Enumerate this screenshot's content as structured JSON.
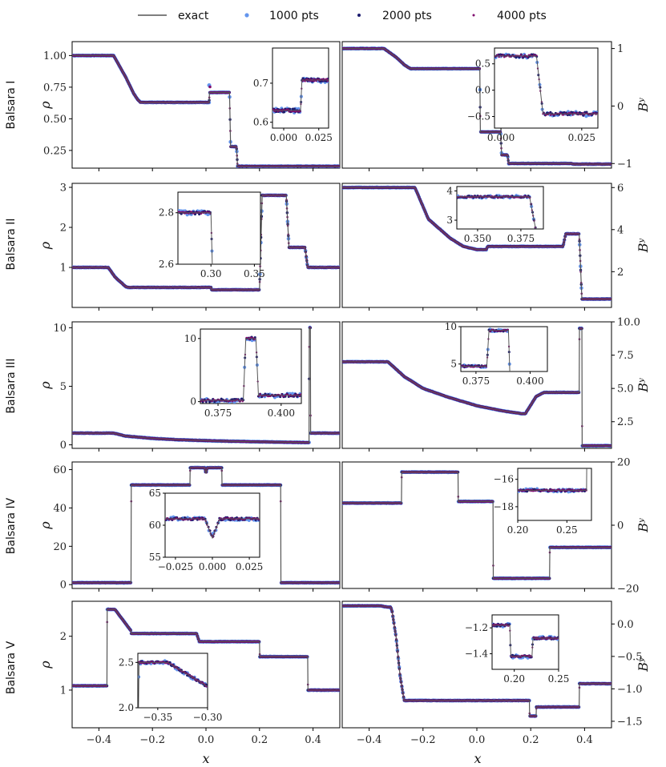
{
  "legend": {
    "exact_label": "exact",
    "s1000_label": "1000 pts",
    "s2000_label": "2000 pts",
    "s4000_label": "4000 pts"
  },
  "colors": {
    "exact": "#555555",
    "s1000": "#6495ed",
    "s2000": "#1c1c6e",
    "s4000": "#7f0a6e"
  },
  "xaxis": {
    "label": "x",
    "ticks": [
      -0.4,
      -0.2,
      0.0,
      0.2,
      0.4
    ],
    "range": [
      -0.5,
      0.5
    ]
  },
  "rows": [
    {
      "name": "Balsara I"
    },
    {
      "name": "Balsara II"
    },
    {
      "name": "Balsara III"
    },
    {
      "name": "Balsara IV"
    },
    {
      "name": "Balsara V"
    }
  ],
  "chart_data": [
    {
      "type": "line",
      "title": "Balsara I",
      "variable": "rho",
      "ylabel": "ρ",
      "ylim": [
        0.11,
        1.11
      ],
      "yticks": [
        0.25,
        0.5,
        0.75,
        1.0
      ],
      "yprec": 2,
      "x": [
        -0.5,
        -0.345,
        -0.3,
        -0.27,
        -0.255,
        -0.245,
        0.002,
        0.012,
        0.013,
        0.088,
        0.092,
        0.114,
        0.118,
        0.5
      ],
      "y": [
        1.0,
        1.0,
        0.83,
        0.7,
        0.652,
        0.63,
        0.63,
        0.63,
        0.708,
        0.708,
        0.28,
        0.28,
        0.125,
        0.125
      ],
      "spikes": [
        {
          "x": 0.012,
          "y": 0.765
        }
      ],
      "inset": {
        "xlim": [
          -0.008,
          0.032
        ],
        "ylim": [
          0.585,
          0.79
        ],
        "xticks": [
          0.0,
          0.025
        ],
        "yticks": [
          0.6,
          0.7
        ],
        "xprec": 3,
        "yprec": 1
      }
    },
    {
      "type": "line",
      "title": "Balsara I",
      "variable": "By",
      "ylabel": "Bʸ",
      "ylim": [
        -1.08,
        1.12
      ],
      "yticks": [
        -1,
        0,
        1
      ],
      "yprec": 0,
      "x": [
        -0.5,
        -0.345,
        -0.3,
        -0.27,
        -0.255,
        -0.245,
        0.002,
        0.011,
        0.013,
        0.088,
        0.092,
        0.114,
        0.118,
        0.35,
        0.36,
        0.5
      ],
      "y": [
        1.0,
        1.0,
        0.85,
        0.72,
        0.67,
        0.65,
        0.65,
        0.65,
        -0.45,
        -0.45,
        -0.85,
        -0.85,
        -1.0,
        -1.0,
        -1.01,
        -1.01
      ],
      "spikes": [],
      "inset": {
        "xlim": [
          -0.002,
          0.03
        ],
        "ylim": [
          -0.72,
          0.8
        ],
        "xticks": [
          0.0,
          0.025
        ],
        "yticks": [
          -0.5,
          0.0,
          0.5
        ],
        "xprec": 3,
        "yprec": 1
      }
    },
    {
      "type": "line",
      "title": "Balsara II",
      "variable": "rho",
      "ylabel": "ρ",
      "ylim": [
        0.0,
        3.1
      ],
      "yticks": [
        1,
        2,
        3
      ],
      "yprec": 0,
      "x": [
        -0.5,
        -0.365,
        -0.34,
        -0.3,
        -0.29,
        0.02,
        0.021,
        0.2,
        0.21,
        0.3,
        0.31,
        0.37,
        0.38,
        0.5
      ],
      "y": [
        1.0,
        1.0,
        0.76,
        0.52,
        0.5,
        0.5,
        0.44,
        0.44,
        2.8,
        2.8,
        1.5,
        1.5,
        1.0,
        1.0
      ],
      "spikes": [],
      "inset": {
        "xlim": [
          0.262,
          0.357
        ],
        "ylim": [
          2.6,
          2.88
        ],
        "xticks": [
          0.3,
          0.35
        ],
        "yticks": [
          2.6,
          2.8
        ],
        "xprec": 2,
        "yprec": 1
      }
    },
    {
      "type": "line",
      "title": "Balsara II",
      "variable": "By",
      "ylabel": "Bʸ",
      "ylim": [
        0.3,
        6.2
      ],
      "yticks": [
        2,
        4,
        6
      ],
      "yprec": 0,
      "x": [
        -0.5,
        -0.23,
        -0.18,
        -0.1,
        -0.05,
        0.0,
        0.01,
        0.035,
        0.04,
        0.32,
        0.33,
        0.38,
        0.39,
        0.5
      ],
      "y": [
        6.0,
        6.0,
        4.5,
        3.6,
        3.2,
        3.05,
        3.05,
        3.05,
        3.2,
        3.2,
        3.8,
        3.8,
        0.7,
        0.7
      ],
      "spikes": [],
      "inset": {
        "xlim": [
          0.338,
          0.388
        ],
        "ylim": [
          2.7,
          4.15
        ],
        "xticks": [
          0.35,
          0.375
        ],
        "yticks": [
          3,
          4
        ],
        "xprec": 3,
        "yprec": 0
      }
    },
    {
      "type": "line",
      "title": "Balsara III",
      "variable": "rho",
      "ylabel": "ρ",
      "ylim": [
        -0.3,
        10.5
      ],
      "yticks": [
        0,
        5,
        10
      ],
      "yprec": 0,
      "x": [
        -0.5,
        -0.345,
        -0.3,
        -0.2,
        -0.1,
        0.0,
        0.1,
        0.2,
        0.3,
        0.37,
        0.385,
        0.386,
        0.39,
        0.391,
        0.5
      ],
      "y": [
        1.0,
        1.0,
        0.75,
        0.55,
        0.43,
        0.36,
        0.3,
        0.26,
        0.22,
        0.2,
        0.2,
        10.0,
        10.0,
        1.0,
        1.0
      ],
      "spikes": [],
      "inset": {
        "xlim": [
          0.368,
          0.408
        ],
        "ylim": [
          -0.3,
          11.5
        ],
        "xticks": [
          0.375,
          0.4
        ],
        "yticks": [
          0,
          10
        ],
        "xprec": 3,
        "yprec": 0
      }
    },
    {
      "type": "line",
      "title": "Balsara III",
      "variable": "By",
      "ylabel": "Bʸ",
      "ylim": [
        0.5,
        10.0
      ],
      "yticks": [
        2.5,
        5.0,
        7.5,
        10.0
      ],
      "yprec": 1,
      "x": [
        -0.5,
        -0.33,
        -0.27,
        -0.2,
        -0.1,
        0.0,
        0.1,
        0.17,
        0.18,
        0.22,
        0.25,
        0.38,
        0.381,
        0.39,
        0.391,
        0.5
      ],
      "y": [
        7.0,
        7.0,
        5.9,
        5.0,
        4.3,
        3.7,
        3.3,
        3.1,
        3.1,
        4.4,
        4.7,
        4.7,
        9.5,
        9.5,
        0.7,
        0.7
      ],
      "spikes": [],
      "inset": {
        "xlim": [
          0.368,
          0.408
        ],
        "ylim": [
          4.0,
          10.0
        ],
        "xticks": [
          0.375,
          0.4
        ],
        "yticks": [
          5,
          10
        ],
        "xprec": 3,
        "yprec": 0
      }
    },
    {
      "type": "line",
      "title": "Balsara IV",
      "variable": "rho",
      "ylabel": "ρ",
      "ylim": [
        -2,
        64
      ],
      "yticks": [
        0,
        20,
        40,
        60
      ],
      "yprec": 0,
      "x": [
        -0.5,
        -0.28,
        -0.279,
        -0.26,
        -0.259,
        -0.06,
        -0.059,
        -0.005,
        0.0,
        0.005,
        0.059,
        0.06,
        0.259,
        0.26,
        0.279,
        0.28,
        0.5
      ],
      "y": [
        1.0,
        1.0,
        52.0,
        52.0,
        52.0,
        52.0,
        61.0,
        61.0,
        58.0,
        61.0,
        61.0,
        52.0,
        52.0,
        52.0,
        52.0,
        1.0,
        1.0
      ],
      "spikes": [],
      "inset": {
        "xlim": [
          -0.032,
          0.032
        ],
        "ylim": [
          55,
          65
        ],
        "xticks": [
          -0.025,
          0.0,
          0.025
        ],
        "yticks": [
          55,
          60,
          65
        ],
        "xprec": 3,
        "yprec": 0
      }
    },
    {
      "type": "line",
      "title": "Balsara IV",
      "variable": "By",
      "ylabel": "Bʸ",
      "ylim": [
        -20,
        20
      ],
      "yticks": [
        -20,
        0,
        20
      ],
      "yprec": 0,
      "x": [
        -0.5,
        -0.28,
        -0.279,
        -0.07,
        -0.069,
        0.06,
        0.061,
        0.27,
        0.271,
        0.5
      ],
      "y": [
        7.0,
        7.0,
        16.8,
        16.8,
        7.5,
        7.5,
        -16.8,
        -16.8,
        -7.0,
        -7.0
      ],
      "spikes": [],
      "inset": {
        "xlim": [
          0.2,
          0.275
        ],
        "ylim": [
          -19,
          -15.2
        ],
        "xticks": [
          0.2,
          0.25
        ],
        "yticks": [
          -18,
          -16
        ],
        "xprec": 2,
        "yprec": 0
      }
    },
    {
      "type": "line",
      "title": "Balsara V",
      "variable": "rho",
      "ylabel": "ρ",
      "ylim": [
        0.3,
        2.65
      ],
      "yticks": [
        1,
        2
      ],
      "yprec": 0,
      "x": [
        -0.5,
        -0.37,
        -0.369,
        -0.34,
        -0.28,
        -0.279,
        -0.035,
        -0.025,
        0.2,
        0.201,
        0.38,
        0.381,
        0.5
      ],
      "y": [
        1.08,
        1.08,
        2.5,
        2.5,
        2.1,
        2.05,
        2.05,
        1.9,
        1.9,
        1.62,
        1.62,
        1.0,
        1.0
      ],
      "spikes": [],
      "inset": {
        "xlim": [
          -0.37,
          -0.3
        ],
        "ylim": [
          2.0,
          2.6
        ],
        "xticks": [
          -0.35,
          -0.3
        ],
        "yticks": [
          2.0,
          2.5
        ],
        "xprec": 2,
        "yprec": 1
      }
    },
    {
      "type": "line",
      "title": "Balsara V",
      "variable": "By",
      "ylabel": "Bʸ",
      "ylim": [
        -1.6,
        0.35
      ],
      "yticks": [
        -1.5,
        -1.0,
        -0.5,
        0.0
      ],
      "yprec": 1,
      "x": [
        -0.5,
        -0.36,
        -0.33,
        -0.32,
        -0.315,
        -0.3,
        -0.285,
        -0.27,
        0.195,
        0.196,
        0.22,
        0.221,
        0.38,
        0.381,
        0.5
      ],
      "y": [
        0.28,
        0.28,
        0.26,
        0.26,
        0.2,
        -0.2,
        -0.8,
        -1.18,
        -1.18,
        -1.42,
        -1.42,
        -1.28,
        -1.28,
        -0.92,
        -0.92
      ],
      "spikes": [],
      "inset": {
        "xlim": [
          0.175,
          0.25
        ],
        "ylim": [
          -1.52,
          -1.1
        ],
        "xticks": [
          0.2,
          0.25
        ],
        "yticks": [
          -1.4,
          -1.2
        ],
        "xprec": 2,
        "yprec": 1
      }
    }
  ]
}
